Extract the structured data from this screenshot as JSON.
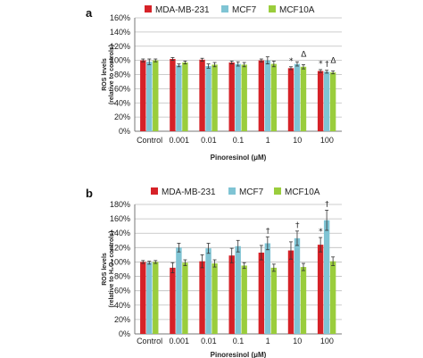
{
  "chart_data": [
    {
      "type": "bar",
      "panel": "a",
      "categories": [
        "Control",
        "0.001",
        "0.01",
        "0.1",
        "1",
        "10",
        "100"
      ],
      "xlabel": "Pinoresinol (μM)",
      "ylabel_line1": "ROS levels",
      "ylabel_line2": "(relative to controls)",
      "ylim": [
        0,
        160
      ],
      "yticks": [
        "0%",
        "20%",
        "40%",
        "60%",
        "80%",
        "100%",
        "120%",
        "140%",
        "160%"
      ],
      "grid": true,
      "legend_position": "top",
      "series": [
        {
          "name": "MDA-MB-231",
          "color": "#d62228",
          "values": [
            100,
            102,
            101,
            97,
            100,
            89,
            85
          ],
          "errors": [
            2,
            2,
            2,
            2,
            2,
            2,
            2
          ]
        },
        {
          "name": "MCF7",
          "color": "#7fc4d4",
          "values": [
            98,
            93,
            92,
            95,
            100,
            95,
            84
          ],
          "errors": [
            4,
            2,
            3,
            3,
            5,
            3,
            2
          ]
        },
        {
          "name": "MCF10A",
          "color": "#9acd3c",
          "values": [
            100,
            97,
            94,
            94,
            95,
            91,
            83
          ],
          "errors": [
            2,
            2,
            3,
            3,
            4,
            3,
            2
          ]
        }
      ],
      "annotations": [
        {
          "category": 5,
          "series": 0,
          "text": "*"
        },
        {
          "category": 5,
          "series": 2,
          "text": "Δ"
        },
        {
          "category": 6,
          "series": 0,
          "text": "*"
        },
        {
          "category": 6,
          "series": 1,
          "text": "†"
        },
        {
          "category": 6,
          "series": 2,
          "text": "Δ"
        }
      ]
    },
    {
      "type": "bar",
      "panel": "b",
      "categories": [
        "Control",
        "0.001",
        "0.01",
        "0.1",
        "1",
        "10",
        "100"
      ],
      "xlabel": "Pinoresinol (μM)",
      "ylabel_line1": "ROS levels",
      "ylabel_line2": "(relative to H₂O₂ controls)",
      "ylim": [
        0,
        180
      ],
      "yticks": [
        "0%",
        "20%",
        "40%",
        "60%",
        "80%",
        "100%",
        "120%",
        "140%",
        "160%",
        "180%"
      ],
      "grid": true,
      "legend_position": "top",
      "series": [
        {
          "name": "MDA-MB-231",
          "color": "#d62228",
          "values": [
            100,
            92,
            101,
            109,
            113,
            116,
            124
          ],
          "errors": [
            2,
            7,
            9,
            10,
            10,
            12,
            10
          ]
        },
        {
          "name": "MCF7",
          "color": "#7fc4d4",
          "values": [
            99,
            120,
            119,
            122,
            126,
            133,
            158
          ],
          "errors": [
            2,
            6,
            7,
            8,
            9,
            10,
            14
          ]
        },
        {
          "name": "MCF10A",
          "color": "#9acd3c",
          "values": [
            100,
            99,
            98,
            95,
            92,
            93,
            101
          ],
          "errors": [
            2,
            4,
            5,
            4,
            5,
            5,
            6
          ]
        }
      ],
      "annotations": [
        {
          "category": 4,
          "series": 1,
          "text": "†"
        },
        {
          "category": 5,
          "series": 1,
          "text": "†"
        },
        {
          "category": 6,
          "series": 0,
          "text": "*"
        },
        {
          "category": 6,
          "series": 1,
          "text": "†"
        }
      ]
    }
  ]
}
